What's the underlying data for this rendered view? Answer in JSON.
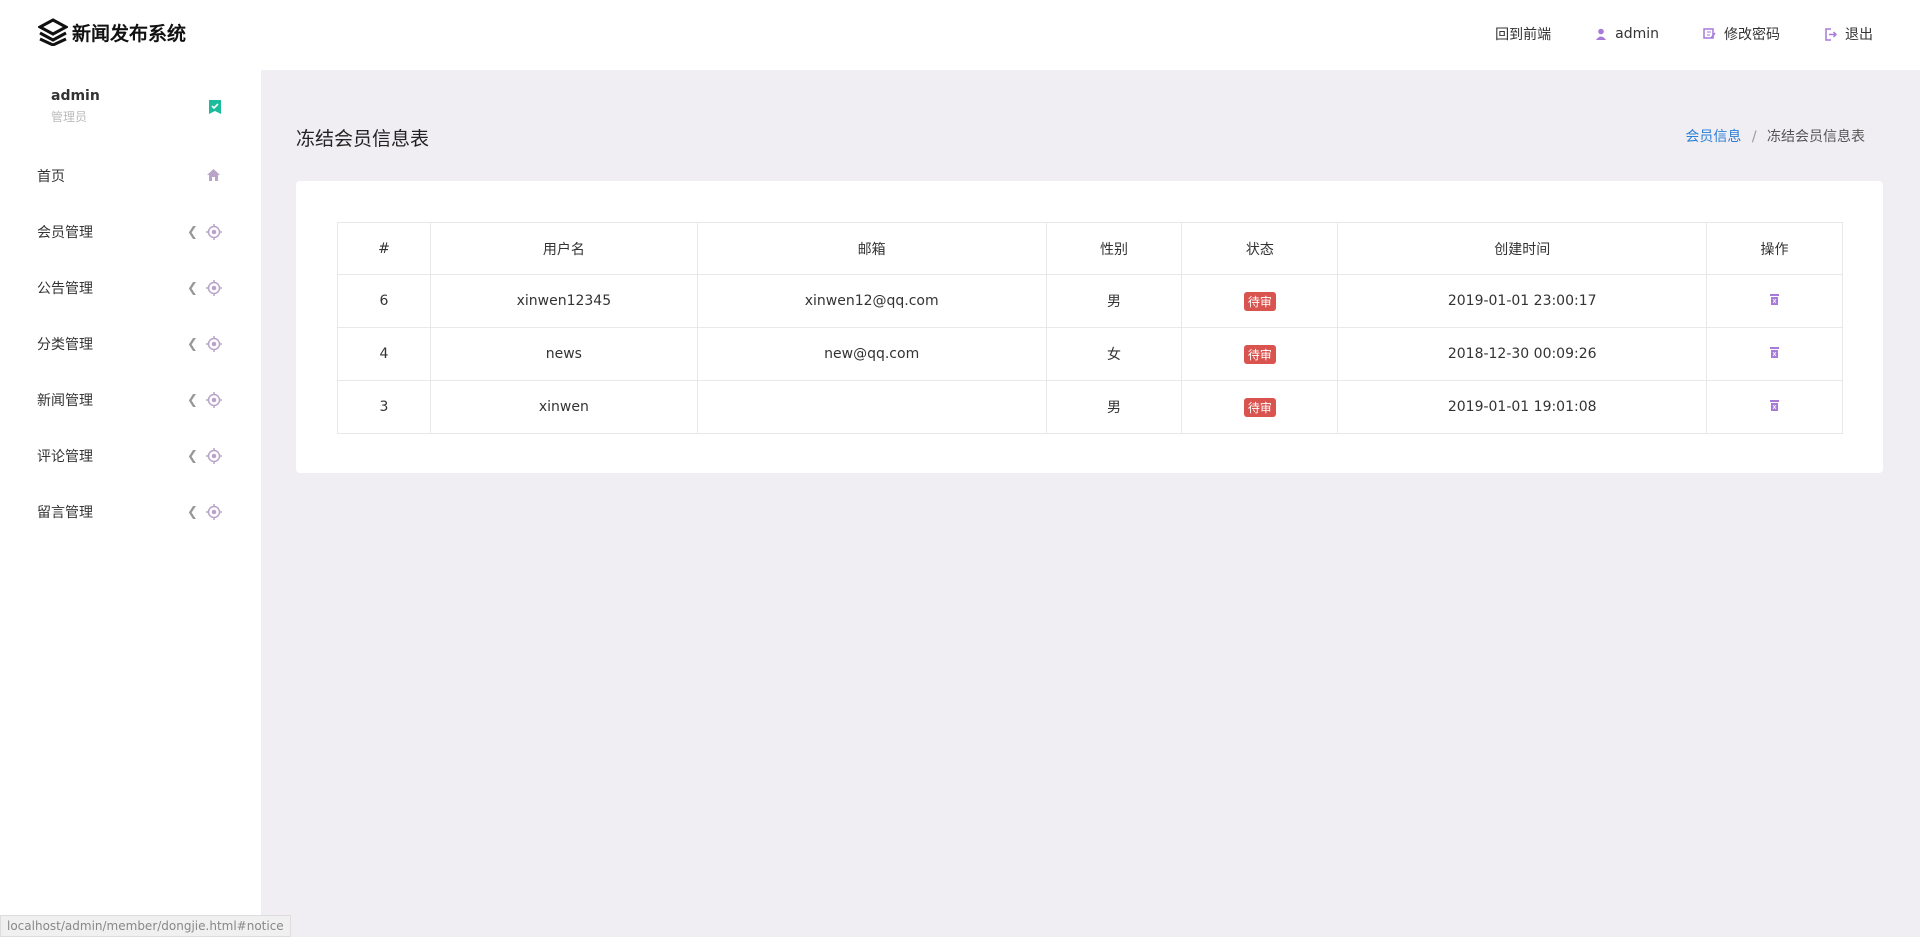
{
  "app": {
    "title": "新闻发布系统"
  },
  "header": {
    "items": [
      {
        "label": "回到前端",
        "icon": ""
      },
      {
        "label": "admin",
        "icon": "user-icon"
      },
      {
        "label": "修改密码",
        "icon": "edit-icon"
      },
      {
        "label": "退出",
        "icon": "logout-icon"
      }
    ]
  },
  "sidebar": {
    "user": {
      "name": "admin",
      "role": "管理员"
    },
    "items": [
      {
        "label": "首页",
        "icon": "home-icon"
      },
      {
        "label": "会员管理",
        "icon": "target-icon"
      },
      {
        "label": "公告管理",
        "icon": "target-icon"
      },
      {
        "label": "分类管理",
        "icon": "target-icon"
      },
      {
        "label": "新闻管理",
        "icon": "target-icon"
      },
      {
        "label": "评论管理",
        "icon": "target-icon"
      },
      {
        "label": "留言管理",
        "icon": "target-icon"
      }
    ]
  },
  "page": {
    "title": "冻结会员信息表",
    "breadcrumb": {
      "parent": "会员信息",
      "separator": "/",
      "current": "冻结会员信息表"
    }
  },
  "table": {
    "headers": [
      "#",
      "用户名",
      "邮箱",
      "性别",
      "状态",
      "创建时间",
      "操作"
    ],
    "rows": [
      [
        "6",
        "xinwen12345",
        "xinwen12@qq.com",
        "男",
        "待审",
        "2019-01-01 23:00:17"
      ],
      [
        "4",
        "news",
        "new@qq.com",
        "女",
        "待审",
        "2018-12-30 00:09:26"
      ],
      [
        "3",
        "xinwen",
        "",
        "男",
        "待审",
        "2019-01-01 19:01:08"
      ]
    ]
  },
  "status_bar": {
    "url": "localhost/admin/member/dongjie.html#notice"
  },
  "colors": {
    "accent": "#a77ad9",
    "tag": "#d9534f",
    "link": "#2b7fd6",
    "badge": "#1abc9c"
  }
}
